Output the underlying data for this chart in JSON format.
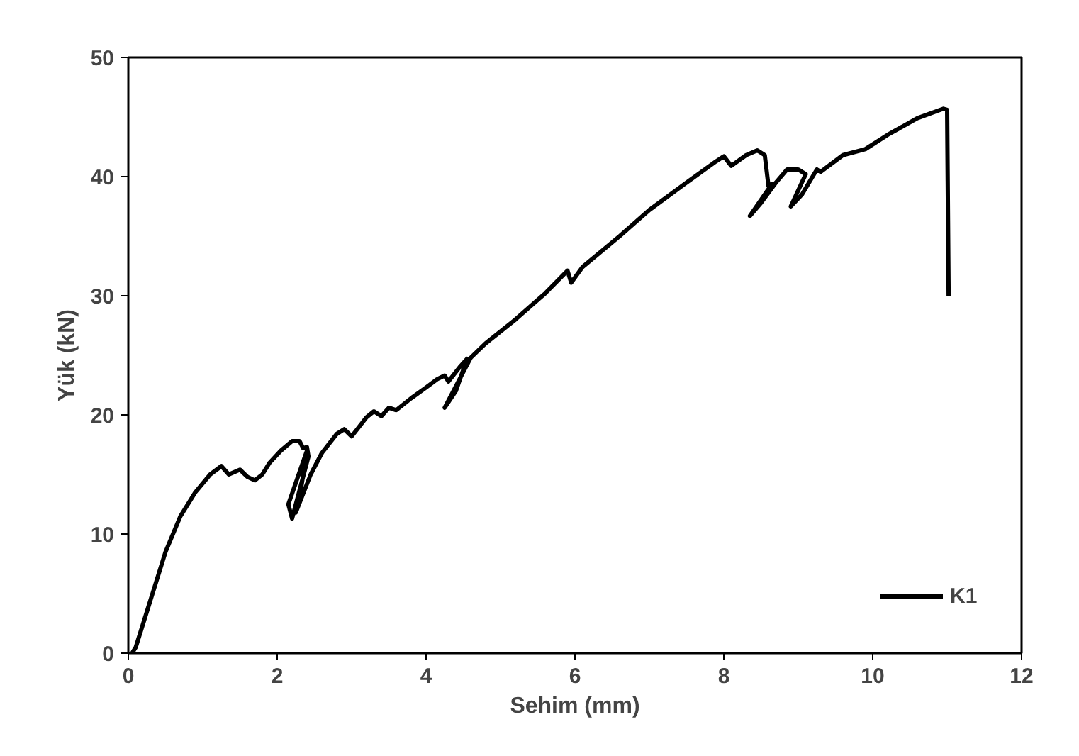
{
  "chart_data": {
    "type": "line",
    "xlabel": "Sehim (mm)",
    "ylabel": "Yük (kN)",
    "xlim": [
      0,
      12
    ],
    "xticks": [
      0,
      2,
      4,
      6,
      8,
      10,
      12
    ],
    "ylim": [
      0,
      50
    ],
    "yticks": [
      0,
      10,
      20,
      30,
      40,
      50
    ],
    "grid": false,
    "legend": "bottom right",
    "marker": "none",
    "line_style": "solid",
    "series": [
      {
        "name": "K1",
        "color": "#000000",
        "x": [
          0.05,
          0.1,
          0.2,
          0.35,
          0.5,
          0.7,
          0.9,
          1.1,
          1.25,
          1.35,
          1.5,
          1.6,
          1.7,
          1.8,
          1.9,
          2.05,
          2.2,
          2.3,
          2.35,
          2.4,
          2.42,
          2.2,
          2.15,
          2.4,
          2.3,
          2.25,
          2.45,
          2.6,
          2.8,
          2.9,
          3.0,
          3.2,
          3.3,
          3.4,
          3.5,
          3.6,
          3.8,
          4.0,
          4.15,
          4.25,
          4.3,
          4.45,
          4.55,
          4.4,
          4.25,
          4.45,
          4.6,
          4.8,
          5.2,
          5.6,
          5.9,
          5.95,
          6.1,
          6.6,
          7.0,
          7.5,
          7.9,
          8.0,
          8.1,
          8.3,
          8.45,
          8.55,
          8.6,
          8.65,
          8.35,
          8.5,
          8.7,
          8.85,
          9.0,
          9.1,
          8.9,
          9.05,
          9.25,
          9.3,
          9.6,
          9.9,
          10.2,
          10.6,
          10.95,
          11.0,
          11.02
        ],
        "values": [
          0,
          0.5,
          2.5,
          5.5,
          8.5,
          11.5,
          13.5,
          15,
          15.7,
          15,
          15.4,
          14.8,
          14.5,
          15,
          16,
          17,
          17.8,
          17.8,
          17.2,
          17.3,
          16.5,
          11.3,
          12.5,
          17,
          13,
          11.8,
          15,
          16.8,
          18.4,
          18.8,
          18.2,
          19.8,
          20.3,
          19.9,
          20.6,
          20.4,
          21.4,
          22.3,
          23,
          23.3,
          22.8,
          24,
          24.7,
          22,
          20.6,
          23,
          24.8,
          26,
          28,
          30.2,
          32.1,
          31.1,
          32.4,
          35,
          37.2,
          39.5,
          41.3,
          41.7,
          40.9,
          41.8,
          42.2,
          41.8,
          39.2,
          39.4,
          36.7,
          37.8,
          39.5,
          40.6,
          40.6,
          40.2,
          37.5,
          38.5,
          40.6,
          40.4,
          41.8,
          42.3,
          43.5,
          44.9,
          45.7,
          45.6,
          30
        ]
      }
    ]
  }
}
